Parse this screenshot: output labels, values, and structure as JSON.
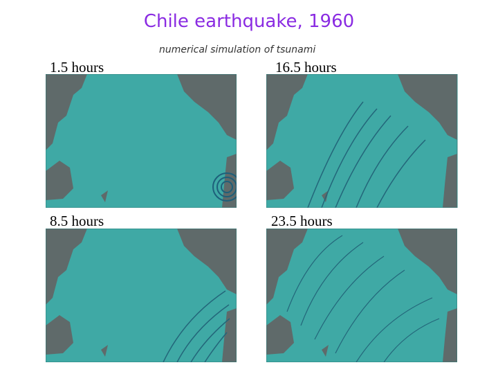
{
  "header": {
    "title": "Chile earthquake, 1960",
    "subtitle": "numerical simulation of tsunami"
  },
  "panels": [
    {
      "label": "1.5 hours"
    },
    {
      "label": "16.5 hours"
    },
    {
      "label": "8.5 hours"
    },
    {
      "label": "23.5 hours"
    }
  ]
}
